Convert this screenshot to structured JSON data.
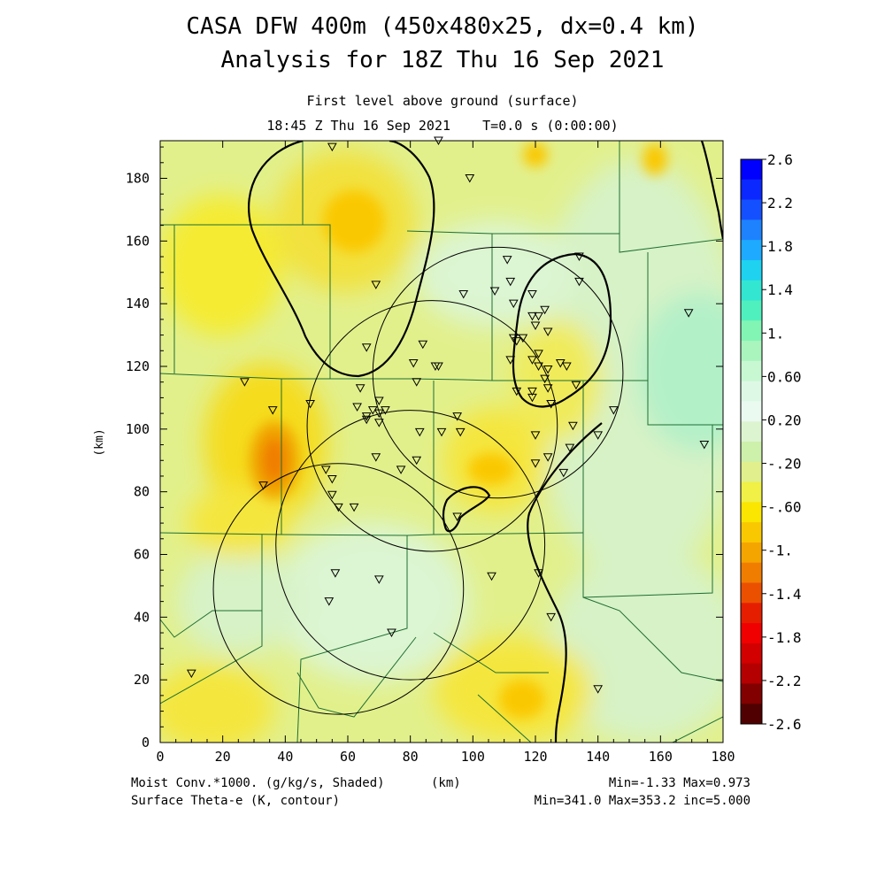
{
  "header": {
    "title_line1": "CASA DFW 400m (450x480x25, dx=0.4 km)",
    "title_line2": "Analysis for 18Z Thu 16 Sep 2021",
    "subtitle_line1": "First level above ground (surface)",
    "subtitle_line2": "18:45 Z Thu 16 Sep 2021    T=0.0 s (0:00:00)"
  },
  "footer": {
    "left_line1": "Moist Conv.*1000. (g/kg/s, Shaded)",
    "left_line2": "Surface Theta-e (K, contour)",
    "units": "(km)",
    "right_line1": "Min=-1.33 Max=0.973",
    "right_line2": "Min=341.0 Max=353.2 inc=5.000"
  },
  "colors": {
    "yellow": "#f5eb32",
    "yellow_green": "#e2f08c",
    "light_green": "#d2f0c8",
    "orange": "#fad700",
    "deep_orange": "#f0a500",
    "background": "#ffffff"
  },
  "chart_data": {
    "type": "heatmap",
    "title": "CASA DFW 400m (450x480x25, dx=0.4 km)",
    "subtitle": "Analysis for 18Z Thu 16 Sep 2021",
    "field_shaded": "Moist Conv.*1000. (g/kg/s, Shaded)",
    "field_contour": "Surface Theta-e (K, contour)",
    "xlabel": "",
    "ylabel": "(km)",
    "xlim": [
      0,
      180
    ],
    "ylim": [
      0,
      192
    ],
    "x_ticks": [
      0,
      20,
      40,
      60,
      80,
      100,
      120,
      140,
      160,
      180
    ],
    "y_ticks": [
      0,
      20,
      40,
      60,
      80,
      100,
      120,
      140,
      160,
      180
    ],
    "shaded_min": -1.33,
    "shaded_max": 0.973,
    "contour_min": 341.0,
    "contour_max": 353.2,
    "contour_inc": 5.0,
    "colorbar": {
      "labels": [
        "2.6",
        "2.2",
        "1.8",
        "1.4",
        "1.",
        "0.60",
        "0.20",
        "-.20",
        "-.60",
        "-1.",
        "-1.4",
        "-1.8",
        "-2.2",
        "-2.6"
      ],
      "colors": [
        "#0000ff",
        "#0a28ff",
        "#1450ff",
        "#1e82ff",
        "#1eaaff",
        "#1ed2f0",
        "#32e6d2",
        "#50f0be",
        "#82f5b4",
        "#aaf5be",
        "#c8f8d2",
        "#def8e6",
        "#ebfaf0",
        "#dcf5d0",
        "#cdf0aa",
        "#e1f08c",
        "#f0f046",
        "#fae600",
        "#fac800",
        "#f5a500",
        "#f07d00",
        "#eb5000",
        "#e61e00",
        "#f00000",
        "#d20000",
        "#b40000",
        "#820000",
        "#500000"
      ]
    },
    "range_rings": [
      {
        "center_x": 57,
        "center_y": 49,
        "radius_km": 40
      },
      {
        "center_x": 80,
        "center_y": 63,
        "radius_km": 43
      },
      {
        "center_x": 87,
        "center_y": 101,
        "radius_km": 40
      },
      {
        "center_x": 108,
        "center_y": 118,
        "radius_km": 40
      }
    ],
    "stations": [
      [
        55,
        190
      ],
      [
        89,
        192
      ],
      [
        99,
        180
      ],
      [
        69,
        146
      ],
      [
        97,
        143
      ],
      [
        107,
        144
      ],
      [
        111,
        154
      ],
      [
        112,
        147
      ],
      [
        119,
        143
      ],
      [
        134,
        155
      ],
      [
        134,
        147
      ],
      [
        113,
        140
      ],
      [
        119,
        136
      ],
      [
        121,
        136
      ],
      [
        123,
        138
      ],
      [
        120,
        133
      ],
      [
        124,
        131
      ],
      [
        113,
        129
      ],
      [
        114,
        128
      ],
      [
        116,
        129
      ],
      [
        121,
        124
      ],
      [
        119,
        122
      ],
      [
        121,
        120
      ],
      [
        124,
        119
      ],
      [
        123,
        116
      ],
      [
        130,
        120
      ],
      [
        128,
        121
      ],
      [
        124,
        113
      ],
      [
        112,
        122
      ],
      [
        114,
        112
      ],
      [
        119,
        112
      ],
      [
        119,
        110
      ],
      [
        125,
        108
      ],
      [
        125,
        108
      ],
      [
        133,
        114
      ],
      [
        66,
        126
      ],
      [
        84,
        127
      ],
      [
        88,
        120
      ],
      [
        81,
        121
      ],
      [
        82,
        115
      ],
      [
        89,
        120
      ],
      [
        64,
        113
      ],
      [
        27,
        115
      ],
      [
        36,
        106
      ],
      [
        48,
        108
      ],
      [
        63,
        107
      ],
      [
        66,
        104
      ],
      [
        66,
        103
      ],
      [
        68,
        106
      ],
      [
        70,
        109
      ],
      [
        70,
        105
      ],
      [
        70,
        102
      ],
      [
        72,
        106
      ],
      [
        83,
        99
      ],
      [
        90,
        99
      ],
      [
        95,
        104
      ],
      [
        96,
        99
      ],
      [
        120,
        98
      ],
      [
        124,
        91
      ],
      [
        120,
        89
      ],
      [
        131,
        94
      ],
      [
        132,
        101
      ],
      [
        140,
        98
      ],
      [
        145,
        106
      ],
      [
        129,
        86
      ],
      [
        69,
        91
      ],
      [
        77,
        87
      ],
      [
        82,
        90
      ],
      [
        53,
        87
      ],
      [
        55,
        84
      ],
      [
        33,
        82
      ],
      [
        55,
        79
      ],
      [
        57,
        75
      ],
      [
        62,
        75
      ],
      [
        95,
        72
      ],
      [
        106,
        53
      ],
      [
        121,
        54
      ],
      [
        56,
        54
      ],
      [
        70,
        52
      ],
      [
        54,
        45
      ],
      [
        74,
        35
      ],
      [
        125,
        40
      ],
      [
        10,
        22
      ],
      [
        140,
        17
      ],
      [
        169,
        137
      ],
      [
        174,
        95
      ]
    ],
    "theta_e_contours_desc": "closed 346 K contours over north-central area and northeast (x 112-135 km), small closed contour near (100,77); open contour crossing southeast from (135,96) to (126,0)"
  }
}
